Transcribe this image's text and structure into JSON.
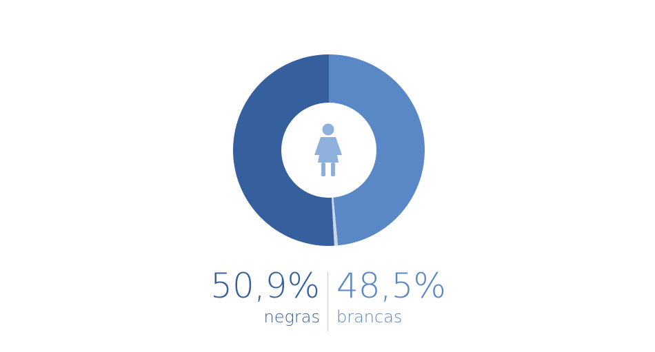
{
  "colors": {
    "negras": "#365f9e",
    "brancas": "#5a87c6",
    "other": "#c9d6ea",
    "icon": "#8fb0dc"
  },
  "icon": "woman-icon",
  "chart_data": {
    "type": "pie",
    "donut": true,
    "slices": [
      {
        "name": "brancas",
        "value": 48.5
      },
      {
        "name": "other",
        "value": 0.6
      },
      {
        "name": "negras",
        "value": 50.9
      }
    ]
  },
  "stats": {
    "left": {
      "value": "50,9%",
      "label": "negras"
    },
    "right": {
      "value": "48,5%",
      "label": "brancas"
    }
  }
}
